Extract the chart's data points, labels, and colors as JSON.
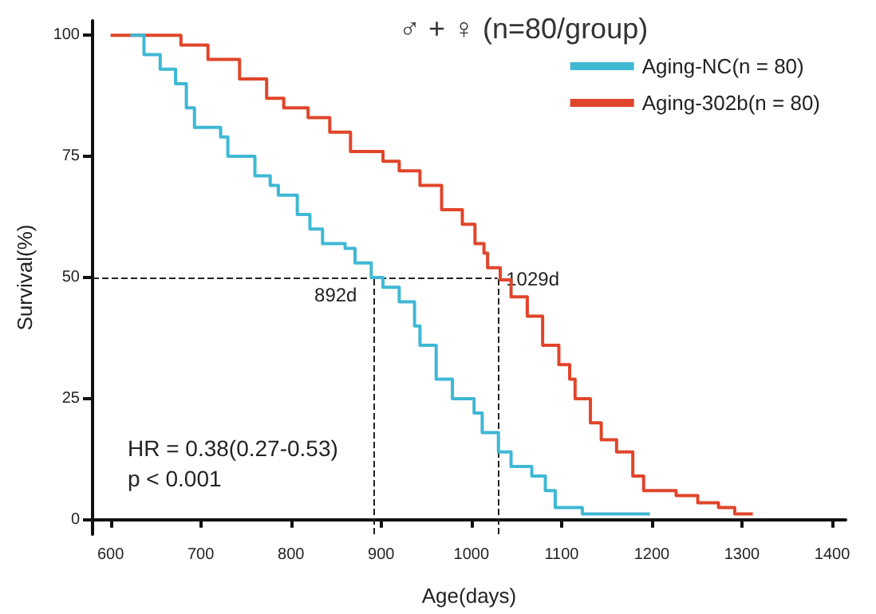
{
  "chart_data": {
    "type": "step",
    "title": "♂ + ♀ (n=80/group)",
    "xlabel": "Age(days)",
    "ylabel": "Survival(%)",
    "xlim": [
      580,
      1415
    ],
    "xticks": [
      600,
      700,
      800,
      900,
      1000,
      1100,
      1200,
      1300,
      1400
    ],
    "ylim": [
      -3,
      103
    ],
    "yticks": [
      0,
      25,
      50,
      75,
      100
    ],
    "grid": false,
    "legend": "top right",
    "marker": "none",
    "series": [
      {
        "name": "Aging-NC(n = 80)",
        "color": "#3fb8d4",
        "x": [
          622,
          637,
          655,
          672,
          684,
          693,
          722,
          730,
          760,
          777,
          786,
          807,
          821,
          835,
          860,
          871,
          889,
          902,
          920,
          937,
          943,
          961,
          979,
          1003,
          1012,
          1030,
          1044,
          1067,
          1082,
          1093,
          1123,
          1198
        ],
        "values": [
          100,
          96,
          93,
          90,
          85,
          81,
          79,
          75,
          71,
          69,
          67,
          63,
          60,
          57,
          56,
          53,
          50,
          48,
          45,
          40,
          36,
          29,
          25,
          22,
          18,
          14,
          11,
          9,
          6,
          2.5,
          1.2,
          1.2
        ]
      },
      {
        "name": "Aging-302b(n = 80)",
        "color": "#e0452b",
        "x": [
          600,
          655,
          678,
          708,
          743,
          773,
          792,
          819,
          843,
          866,
          902,
          920,
          943,
          967,
          990,
          1004,
          1014,
          1018,
          1032,
          1044,
          1062,
          1079,
          1097,
          1109,
          1115,
          1132,
          1144,
          1161,
          1179,
          1191,
          1227,
          1251,
          1274,
          1292,
          1312
        ],
        "values": [
          100,
          100,
          98,
          95,
          91,
          87,
          85,
          83,
          80,
          76,
          74,
          72,
          69,
          64,
          61,
          57,
          55,
          52,
          49.5,
          46,
          42,
          36,
          32,
          29,
          25,
          20,
          16.5,
          14,
          9,
          6,
          5,
          3.5,
          2.5,
          1.2,
          1.2
        ]
      }
    ],
    "ref_lines": [
      {
        "axis": "y",
        "value": 50,
        "label": null,
        "line_style": "dashed"
      },
      {
        "axis": "x",
        "value": 892,
        "label": "892d",
        "line_style": "dashed"
      },
      {
        "axis": "x",
        "value": 1029,
        "label": "1029d",
        "line_style": "dashed"
      }
    ],
    "annotations": [
      "HR = 0.38(0.27-0.53)",
      "p < 0.001"
    ]
  }
}
